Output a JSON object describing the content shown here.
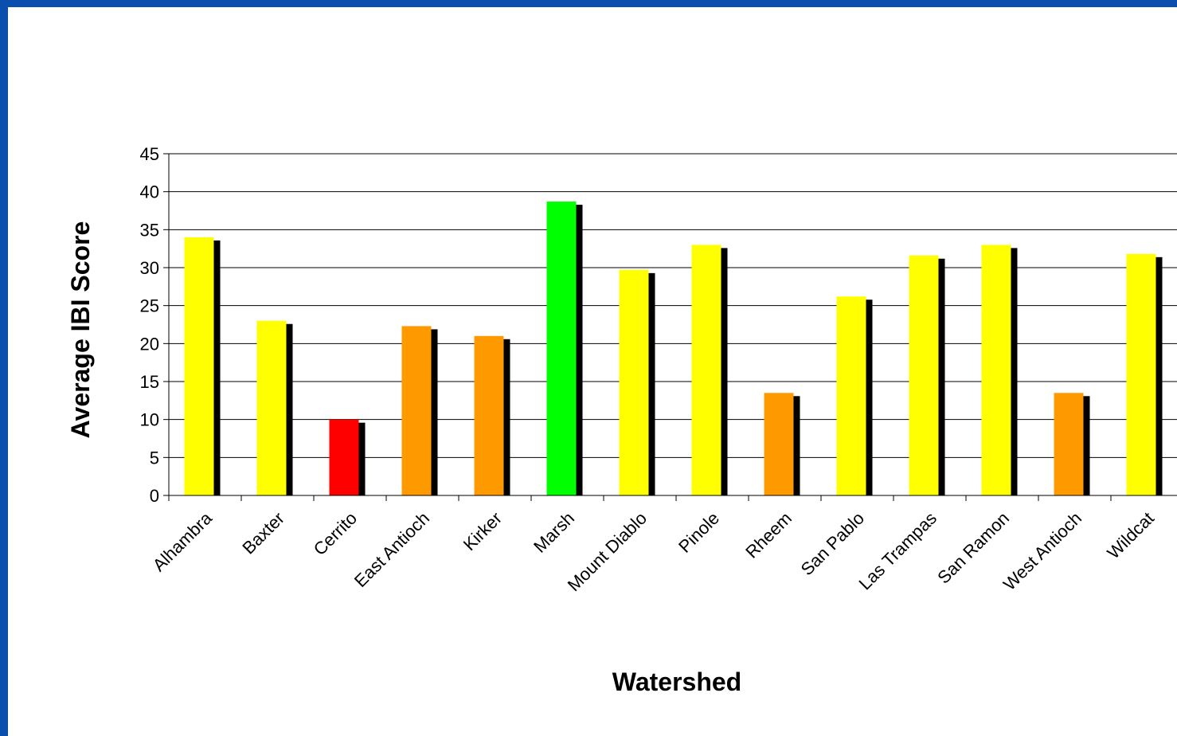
{
  "chart_data": {
    "type": "bar",
    "title": "",
    "xlabel": "Watershed",
    "ylabel": "Average IBI Score",
    "ylim": [
      0,
      45
    ],
    "yticks": [
      0,
      5,
      10,
      15,
      20,
      25,
      30,
      35,
      40,
      45
    ],
    "grid": true,
    "legend": "none",
    "shadow_color": "#000000",
    "categories": [
      "Alhambra",
      "Baxter",
      "Cerrito",
      "East Antioch",
      "Kirker",
      "Marsh",
      "Mount Diablo",
      "Pinole",
      "Rheem",
      "San Pablo",
      "Las Trampas",
      "San Ramon",
      "West Antioch",
      "Wildcat"
    ],
    "values": [
      34.0,
      23.0,
      10.0,
      22.3,
      21.0,
      38.7,
      29.7,
      33.0,
      13.5,
      26.2,
      31.6,
      33.0,
      13.5,
      31.8
    ],
    "colors": [
      "#ffff00",
      "#ffff00",
      "#ff0000",
      "#ff9900",
      "#ff9900",
      "#00ff00",
      "#ffff00",
      "#ffff00",
      "#ff9900",
      "#ffff00",
      "#ffff00",
      "#ffff00",
      "#ff9900",
      "#ffff00"
    ]
  }
}
